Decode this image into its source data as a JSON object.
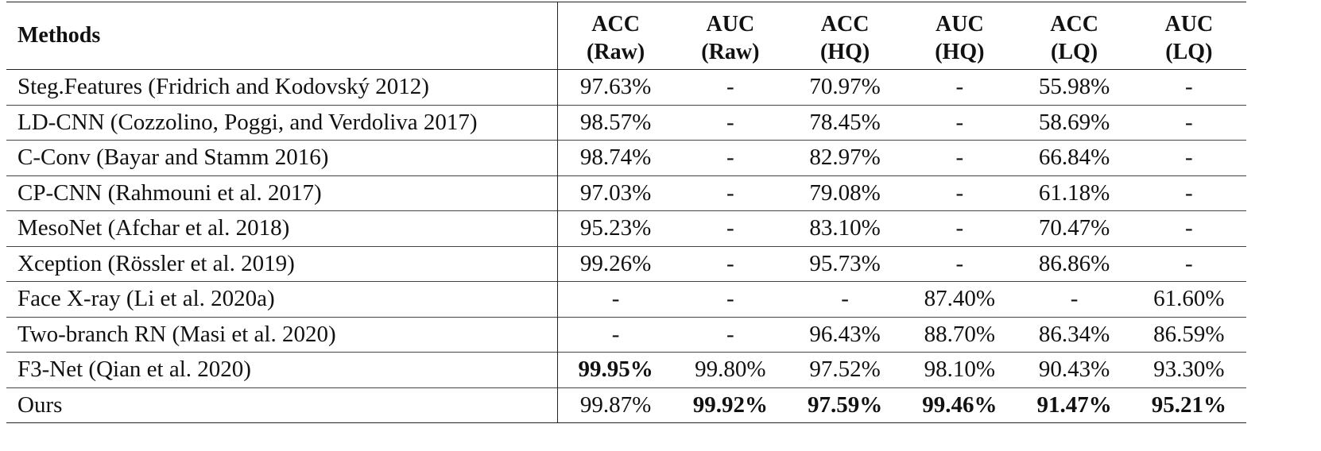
{
  "table": {
    "header": {
      "methods": "Methods",
      "columns": [
        {
          "metric": "ACC",
          "split": "(Raw)"
        },
        {
          "metric": "AUC",
          "split": "(Raw)"
        },
        {
          "metric": "ACC",
          "split": "(HQ)"
        },
        {
          "metric": "AUC",
          "split": "(HQ)"
        },
        {
          "metric": "ACC",
          "split": "(LQ)"
        },
        {
          "metric": "AUC",
          "split": "(LQ)"
        }
      ]
    },
    "rows": [
      {
        "method": "Steg.Features (Fridrich and Kodovský 2012)",
        "values": [
          "97.63%",
          "-",
          "70.97%",
          "-",
          "55.98%",
          "-"
        ],
        "bold": []
      },
      {
        "method": "LD-CNN (Cozzolino, Poggi, and Verdoliva 2017)",
        "values": [
          "98.57%",
          "-",
          "78.45%",
          "-",
          "58.69%",
          "-"
        ],
        "bold": []
      },
      {
        "method": "C-Conv (Bayar and Stamm 2016)",
        "values": [
          "98.74%",
          "-",
          "82.97%",
          "-",
          "66.84%",
          "-"
        ],
        "bold": []
      },
      {
        "method": "CP-CNN (Rahmouni et al. 2017)",
        "values": [
          "97.03%",
          "-",
          "79.08%",
          "-",
          "61.18%",
          "-"
        ],
        "bold": []
      },
      {
        "method": "MesoNet (Afchar et al. 2018)",
        "values": [
          "95.23%",
          "-",
          "83.10%",
          "-",
          "70.47%",
          "-"
        ],
        "bold": []
      },
      {
        "method": "Xception (Rössler et al. 2019)",
        "values": [
          "99.26%",
          "-",
          "95.73%",
          "-",
          "86.86%",
          "-"
        ],
        "bold": []
      },
      {
        "method": "Face X-ray (Li et al. 2020a)",
        "values": [
          "-",
          "-",
          "-",
          "87.40%",
          "-",
          "61.60%"
        ],
        "bold": []
      },
      {
        "method": "Two-branch RN (Masi et al. 2020)",
        "values": [
          "-",
          "-",
          "96.43%",
          "88.70%",
          "86.34%",
          "86.59%"
        ],
        "bold": []
      },
      {
        "method": "F3-Net (Qian et al. 2020)",
        "values": [
          "99.95%",
          "99.80%",
          "97.52%",
          "98.10%",
          "90.43%",
          "93.30%"
        ],
        "bold": [
          0
        ]
      },
      {
        "method": "Ours",
        "values": [
          "99.87%",
          "99.92%",
          "97.59%",
          "99.46%",
          "91.47%",
          "95.21%"
        ],
        "bold": [
          1,
          2,
          3,
          4,
          5
        ]
      }
    ]
  }
}
